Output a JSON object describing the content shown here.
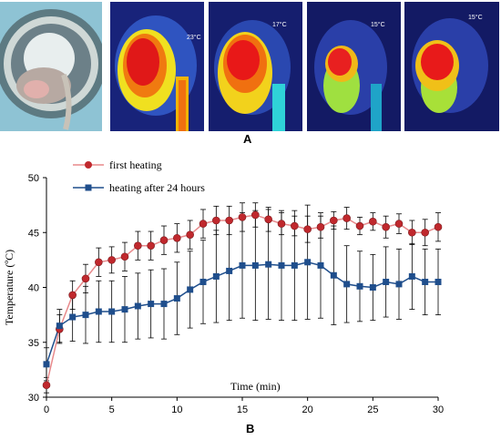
{
  "figure": {
    "panel_a_label": "A",
    "panel_b_label": "B",
    "thermal_readouts": [
      "23°C",
      "17°C",
      "15°C",
      "15°C"
    ]
  },
  "chart_data": {
    "type": "line",
    "xlabel": "Time (min)",
    "ylabel": "Temperature (ºC)",
    "xlim": [
      0,
      30
    ],
    "ylim": [
      30,
      50
    ],
    "xticks": [
      0,
      5,
      10,
      15,
      20,
      25,
      30
    ],
    "yticks": [
      30,
      35,
      40,
      45,
      50
    ],
    "grid": false,
    "legend_placement": "top-left",
    "series": [
      {
        "name": "first heating",
        "color": "#c0282d",
        "marker": "circle",
        "x": [
          0,
          1,
          2,
          3,
          4,
          5,
          6,
          7,
          8,
          9,
          10,
          11,
          12,
          13,
          14,
          15,
          16,
          17,
          18,
          19,
          20,
          21,
          22,
          23,
          24,
          25,
          26,
          27,
          28,
          29,
          30
        ],
        "y": [
          31.1,
          36.2,
          39.3,
          40.8,
          42.3,
          42.5,
          42.8,
          43.8,
          43.8,
          44.3,
          44.5,
          44.8,
          45.8,
          46.1,
          46.1,
          46.4,
          46.6,
          46.2,
          45.8,
          45.6,
          45.3,
          45.5,
          46.1,
          46.3,
          45.6,
          46.0,
          45.5,
          45.8,
          45.0,
          45.0,
          45.5
        ],
        "error": [
          0.7,
          1.3,
          1.3,
          1.3,
          1.3,
          1.2,
          1.3,
          1.3,
          1.3,
          1.3,
          1.3,
          1.3,
          1.3,
          1.3,
          1.3,
          1.3,
          1.1,
          1.1,
          1.0,
          0.9,
          1.2,
          1.0,
          0.8,
          1.0,
          0.8,
          0.8,
          1.0,
          0.9,
          1.1,
          1.2,
          1.3
        ]
      },
      {
        "name": "heating after 24 hours",
        "color": "#1f4e8c",
        "marker": "square",
        "x": [
          0,
          1,
          2,
          3,
          4,
          5,
          6,
          7,
          8,
          9,
          10,
          11,
          12,
          13,
          14,
          15,
          16,
          17,
          18,
          19,
          20,
          21,
          22,
          23,
          24,
          25,
          26,
          27,
          28,
          29,
          30
        ],
        "y": [
          33.0,
          36.5,
          37.3,
          37.5,
          37.8,
          37.8,
          38.0,
          38.3,
          38.5,
          38.5,
          39.0,
          39.8,
          40.5,
          41.0,
          41.5,
          42.0,
          42.0,
          42.1,
          42.0,
          42.0,
          42.3,
          42.0,
          41.1,
          40.3,
          40.1,
          40.0,
          40.5,
          40.3,
          41.0,
          40.5,
          40.5
        ],
        "error": [
          1.5,
          1.5,
          2.2,
          2.6,
          2.8,
          2.8,
          3.0,
          3.0,
          3.1,
          3.2,
          3.3,
          3.5,
          3.8,
          4.2,
          4.5,
          4.8,
          5.0,
          5.0,
          5.0,
          5.0,
          5.2,
          4.8,
          4.5,
          3.5,
          3.2,
          3.0,
          3.2,
          3.2,
          3.0,
          3.0,
          3.0
        ]
      }
    ]
  }
}
